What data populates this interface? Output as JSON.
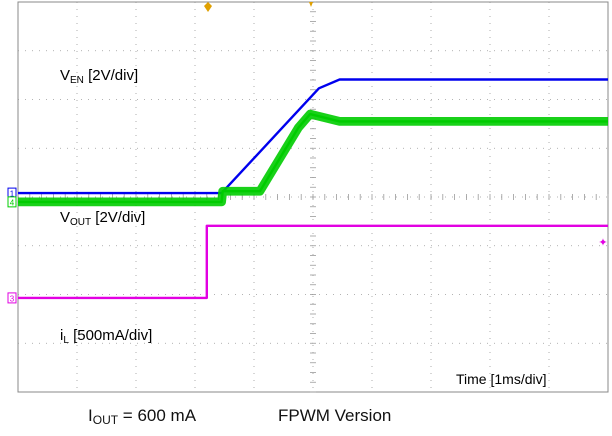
{
  "chart_data": {
    "type": "line",
    "title": "",
    "time_scale": "Time [1ms/div]",
    "x_unit": "ms",
    "xlim": [
      0,
      10
    ],
    "grid": true,
    "series": [
      {
        "name": "V_EN [2V/div]",
        "label_main": "V",
        "label_sub": "EN",
        "label_rest": " [2V/div]",
        "channel": "3",
        "color": "#e200e2",
        "x": [
          0,
          3.2,
          3.2,
          10
        ],
        "y_div": [
          -2.07,
          -2.07,
          -0.59,
          -0.59
        ]
      },
      {
        "name": "V_OUT [2V/div]",
        "label_main": "V",
        "label_sub": "OUT",
        "label_rest": " [2V/div]",
        "channel": "1",
        "color": "#0000ee",
        "x": [
          0,
          3.45,
          5.1,
          5.45,
          10
        ],
        "y_div": [
          0.08,
          0.08,
          2.23,
          2.41,
          2.41
        ]
      },
      {
        "name": "i_L [500mA/div]",
        "label_main": "i",
        "label_sub": "L",
        "label_rest": " [500mA/div]",
        "channel": "4",
        "color": "#00cc00",
        "x": [
          0,
          3.45,
          3.47,
          4.1,
          4.1,
          4.75,
          4.95,
          5.45,
          10
        ],
        "y_div": [
          -0.1,
          -0.1,
          0.12,
          0.12,
          0.12,
          1.42,
          1.7,
          1.55,
          1.55
        ],
        "ripple_div": 0.18
      }
    ]
  },
  "caption": {
    "iout_main": "I",
    "iout_sub": "OUT",
    "iout_rest": " = 600 mA",
    "mode": "FPWM Version"
  }
}
